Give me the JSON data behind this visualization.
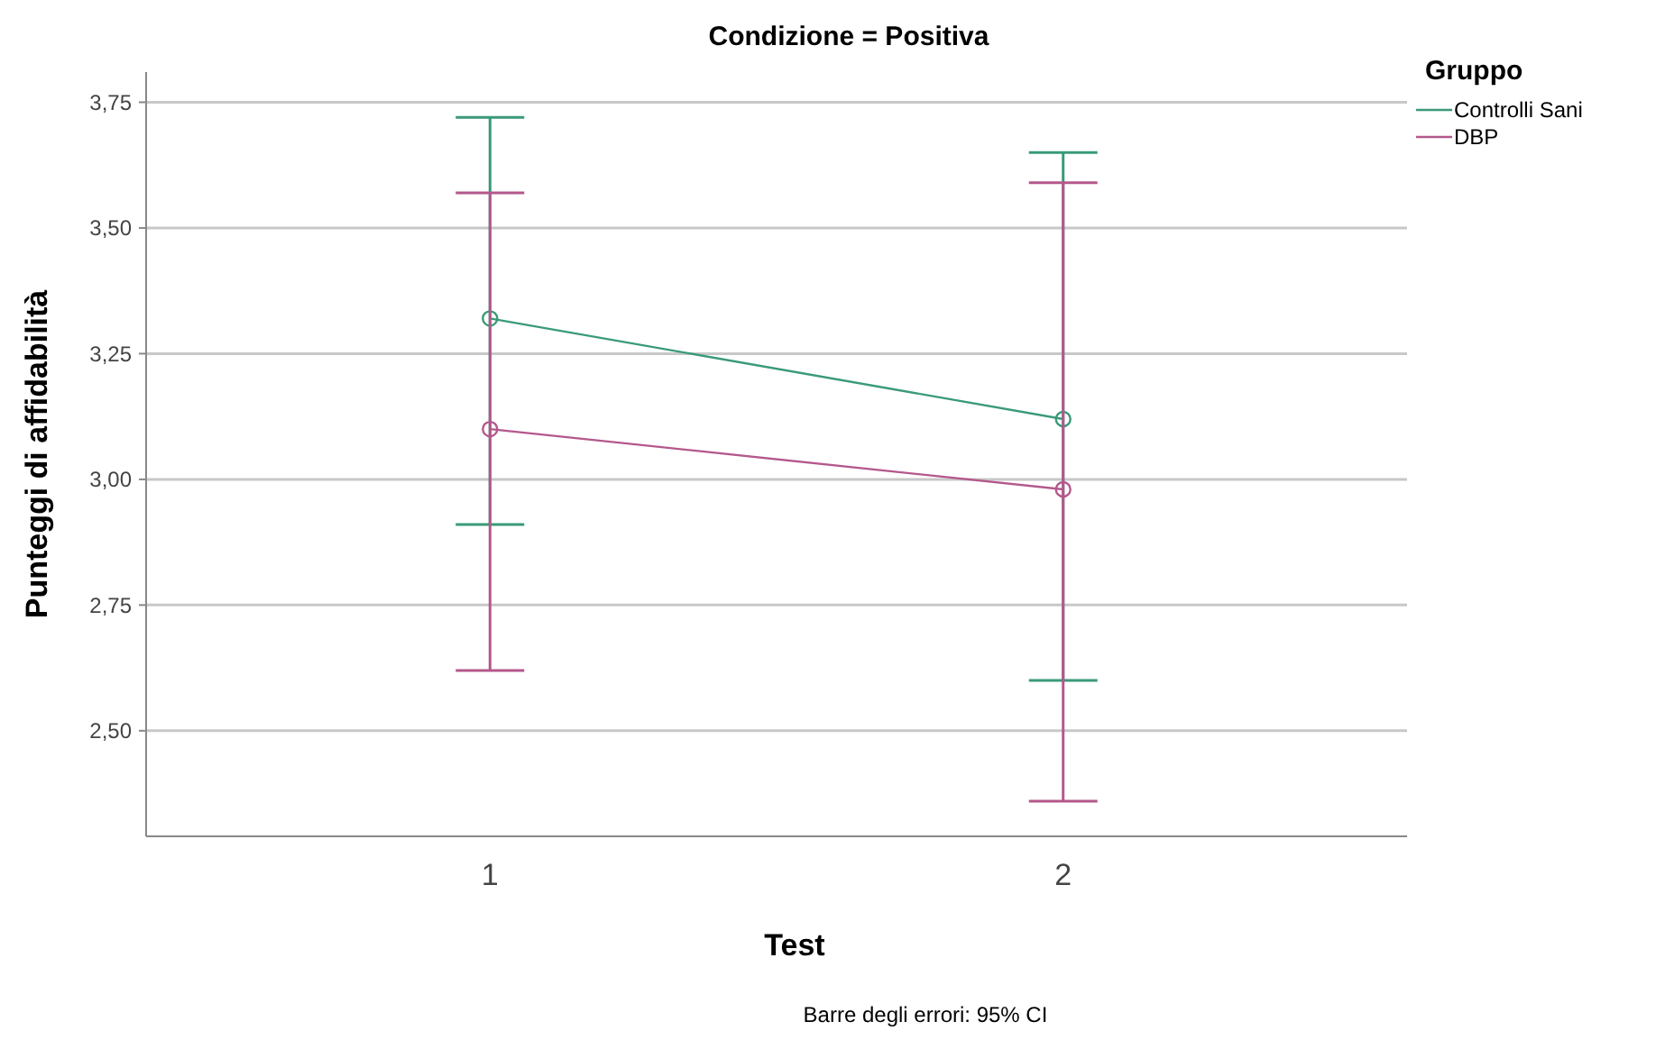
{
  "chart_data": {
    "type": "line",
    "title": "Condizione = Positiva",
    "xlabel": "Test",
    "ylabel": "Punteggi di affidabilità",
    "legend_title": "Gruppo",
    "categories": [
      "1",
      "2"
    ],
    "series": [
      {
        "name": "Controlli Sani",
        "color": "#3a9a78",
        "values": [
          3.32,
          3.12
        ],
        "errors": [
          [
            2.91,
            3.72
          ],
          [
            2.6,
            3.65
          ]
        ]
      },
      {
        "name": "DBP",
        "color": "#b4588c",
        "values": [
          3.1,
          2.98
        ],
        "errors": [
          [
            2.62,
            3.57
          ],
          [
            2.36,
            3.59
          ]
        ]
      }
    ],
    "ylim": [
      2.29,
      3.81
    ],
    "yticks": [
      {
        "value": 2.5,
        "label": "2,50"
      },
      {
        "value": 2.75,
        "label": "2,75"
      },
      {
        "value": 3.0,
        "label": "3,00"
      },
      {
        "value": 3.25,
        "label": "3,25"
      },
      {
        "value": 3.5,
        "label": "3,50"
      },
      {
        "value": 3.75,
        "label": "3,75"
      }
    ],
    "grid": "y",
    "legend": "top right",
    "marker": "circle",
    "line_style": "solid",
    "annotations": [
      "Barre degli errori: 95% CI"
    ]
  }
}
